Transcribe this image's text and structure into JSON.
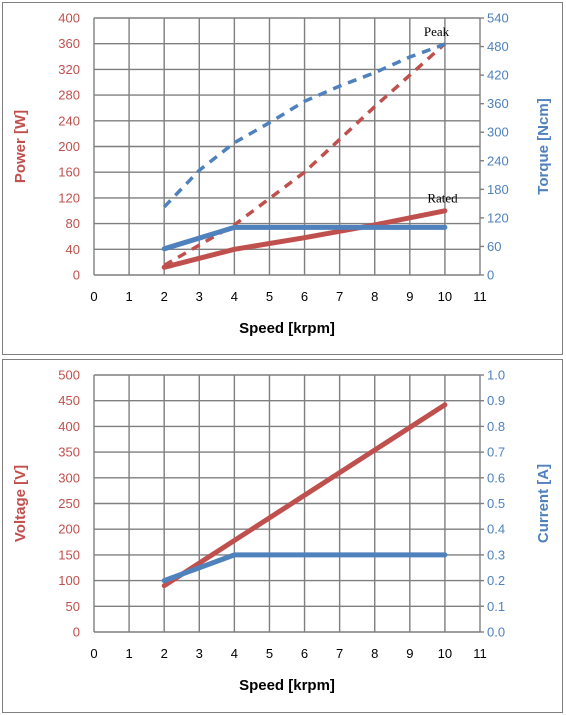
{
  "colors": {
    "red": "#c0504d",
    "blue": "#4f81bd",
    "grid": "#7f7f7f",
    "text": "#000000"
  },
  "chart_data": [
    {
      "type": "line",
      "xlabel": "Speed [krpm]",
      "ylabel_left": "Power [W]",
      "ylabel_right": "Torque [Ncm]",
      "xlim": [
        0,
        11
      ],
      "ylim_left": [
        0,
        400
      ],
      "ylim_right": [
        0,
        540
      ],
      "x_ticks": [
        "0",
        "1",
        "2",
        "3",
        "4",
        "5",
        "6",
        "7",
        "8",
        "9",
        "10",
        "11"
      ],
      "y_ticks_left": [
        "0",
        "40",
        "80",
        "120",
        "160",
        "200",
        "240",
        "280",
        "320",
        "360",
        "400"
      ],
      "y_ticks_right": [
        "0",
        "60",
        "120",
        "180",
        "240",
        "300",
        "360",
        "420",
        "480",
        "540"
      ],
      "grid": true,
      "annotations": [
        {
          "text": "Peak",
          "x": 9.4,
          "y": 372
        },
        {
          "text": "Rated",
          "x": 9.5,
          "y": 113
        }
      ],
      "series": [
        {
          "axis": "left",
          "color": "red",
          "style": "solid",
          "x": [
            2,
            4,
            6,
            8,
            10
          ],
          "values": [
            12,
            40,
            58,
            78,
            100
          ]
        },
        {
          "axis": "left",
          "color": "red",
          "style": "dashed",
          "x": [
            2,
            4,
            6,
            8,
            10
          ],
          "values": [
            15,
            78,
            160,
            262,
            360
          ]
        },
        {
          "axis": "right",
          "color": "blue",
          "style": "solid",
          "x": [
            2,
            4,
            10
          ],
          "values": [
            55,
            100,
            100
          ]
        },
        {
          "axis": "right",
          "color": "blue",
          "style": "dashed",
          "x": [
            2,
            3,
            4,
            5,
            6,
            7,
            8,
            9,
            10
          ],
          "values": [
            143,
            220,
            278,
            320,
            365,
            397,
            425,
            458,
            485
          ]
        }
      ]
    },
    {
      "type": "line",
      "xlabel": "Speed [krpm]",
      "ylabel_left": "Voltage [V]",
      "ylabel_right": "Current [A]",
      "xlim": [
        0,
        11
      ],
      "ylim_left": [
        0,
        500
      ],
      "ylim_right": [
        0,
        1.0
      ],
      "x_ticks": [
        "0",
        "1",
        "2",
        "3",
        "4",
        "5",
        "6",
        "7",
        "8",
        "9",
        "10",
        "11"
      ],
      "y_ticks_left": [
        "0",
        "50",
        "100",
        "150",
        "200",
        "250",
        "300",
        "350",
        "400",
        "450",
        "500"
      ],
      "y_ticks_right": [
        "0.0",
        "0.1",
        "0.2",
        "0.3",
        "0.4",
        "0.5",
        "0.6",
        "0.7",
        "0.8",
        "0.9",
        "1.0"
      ],
      "grid": true,
      "annotations": [],
      "series": [
        {
          "axis": "left",
          "color": "red",
          "style": "solid",
          "x": [
            2,
            10
          ],
          "values": [
            90,
            442
          ]
        },
        {
          "axis": "right",
          "color": "blue",
          "style": "solid",
          "x": [
            2,
            4,
            10
          ],
          "values": [
            0.2,
            0.3,
            0.3
          ]
        }
      ]
    }
  ]
}
